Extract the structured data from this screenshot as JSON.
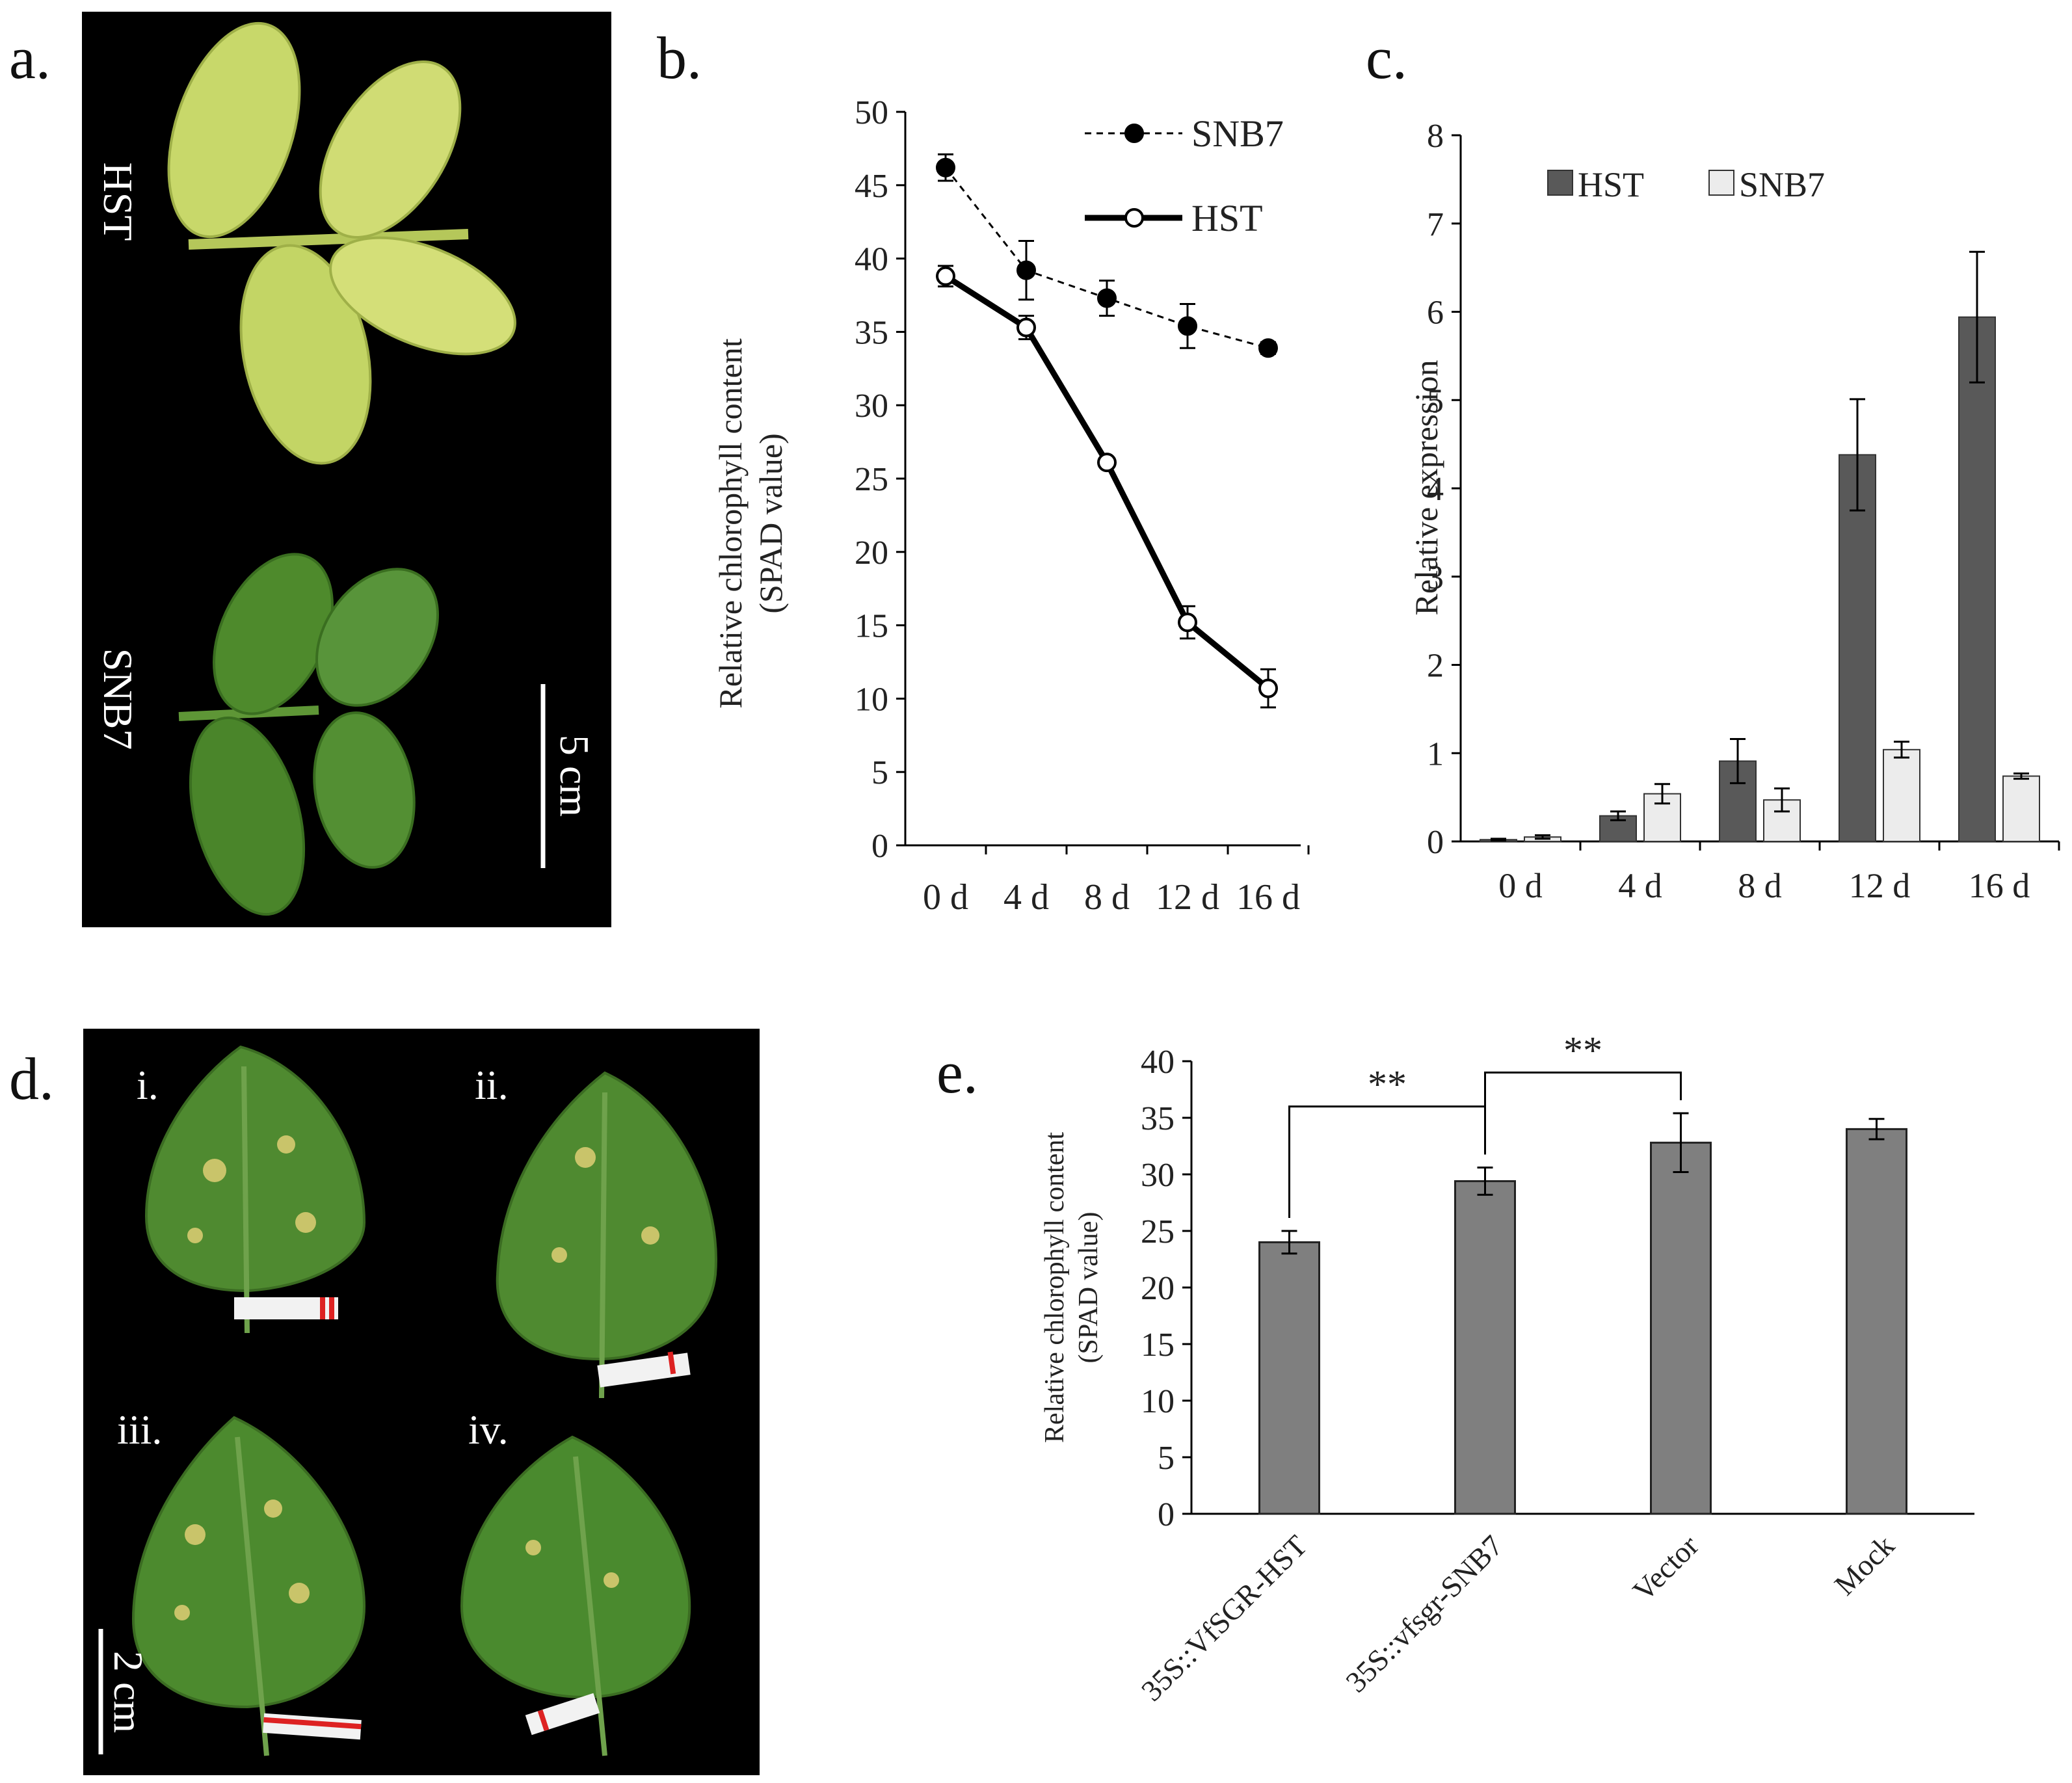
{
  "panels": {
    "a": {
      "letter": "a.",
      "leaf_labels": [
        "HST",
        "SNB7"
      ],
      "scale_bar": "5 cm",
      "colors": {
        "background": "#000000",
        "hst_leaf": "#c9d96a",
        "snb7_leaf": "#4f8a2d"
      }
    },
    "d": {
      "letter": "d.",
      "leaf_labels": [
        "i.",
        "ii.",
        "iii.",
        "iv."
      ],
      "scale_bar": "2 cm",
      "colors": {
        "background": "#000000",
        "leaf": "#4f8a30",
        "lesion": "#c9c46a"
      }
    },
    "b": {
      "letter": "b."
    },
    "c": {
      "letter": "c."
    },
    "e": {
      "letter": "e."
    }
  },
  "chart_data": [
    {
      "panel": "b",
      "type": "line",
      "categories": [
        "0 d",
        "4 d",
        "8 d",
        "12 d",
        "16 d"
      ],
      "ylabel_lines": [
        "Relative  chlorophyll  content",
        "(SPAD value)"
      ],
      "ylim": [
        0,
        50
      ],
      "yticks": [
        0,
        5,
        10,
        15,
        20,
        25,
        30,
        35,
        40,
        45,
        50
      ],
      "legend": "top-right",
      "series": [
        {
          "name": "SNB7",
          "values": [
            46.2,
            39.2,
            37.3,
            35.4,
            33.9
          ],
          "errors": [
            0.9,
            2.0,
            1.2,
            1.5,
            0.4
          ],
          "style": "dashed",
          "marker": "filled"
        },
        {
          "name": "HST",
          "values": [
            38.8,
            35.3,
            26.1,
            15.2,
            10.7
          ],
          "errors": [
            0.7,
            0.8,
            0.3,
            1.1,
            1.3
          ],
          "style": "solid",
          "marker": "open"
        }
      ]
    },
    {
      "panel": "c",
      "type": "bar",
      "categories": [
        "0 d",
        "4 d",
        "8 d",
        "12 d",
        "16 d"
      ],
      "ylabel": "Relative  expression",
      "ylim": [
        0,
        8
      ],
      "yticks": [
        0,
        1,
        2,
        3,
        4,
        5,
        6,
        7,
        8
      ],
      "legend": "top-left",
      "series": [
        {
          "name": "HST",
          "values": [
            0.02,
            0.29,
            0.91,
            4.38,
            5.94
          ],
          "errors": [
            0.01,
            0.05,
            0.25,
            0.63,
            0.74
          ],
          "color": "#595959"
        },
        {
          "name": "SNB7",
          "values": [
            0.05,
            0.54,
            0.47,
            1.04,
            0.74
          ],
          "errors": [
            0.02,
            0.11,
            0.13,
            0.09,
            0.03
          ],
          "color": "#ececec"
        }
      ]
    },
    {
      "panel": "e",
      "type": "bar",
      "categories": [
        "35S::VfSGR-HST",
        "35S::vfsgr-SNB7",
        "Vector",
        "Mock"
      ],
      "ylabel_lines": [
        "Relative  chlorophyll  content",
        "(SPAD value)"
      ],
      "ylim": [
        0,
        40
      ],
      "yticks": [
        0,
        5,
        10,
        15,
        20,
        25,
        30,
        35,
        40
      ],
      "series": [
        {
          "values": [
            24.0,
            29.4,
            32.8,
            34.0
          ],
          "errors": [
            1.0,
            1.2,
            2.6,
            0.9
          ],
          "color": "#7f7f7f"
        }
      ],
      "annotations": [
        {
          "from": 0,
          "to": 1,
          "label": "**"
        },
        {
          "from": 1,
          "to": 2,
          "label": "**"
        }
      ]
    }
  ]
}
